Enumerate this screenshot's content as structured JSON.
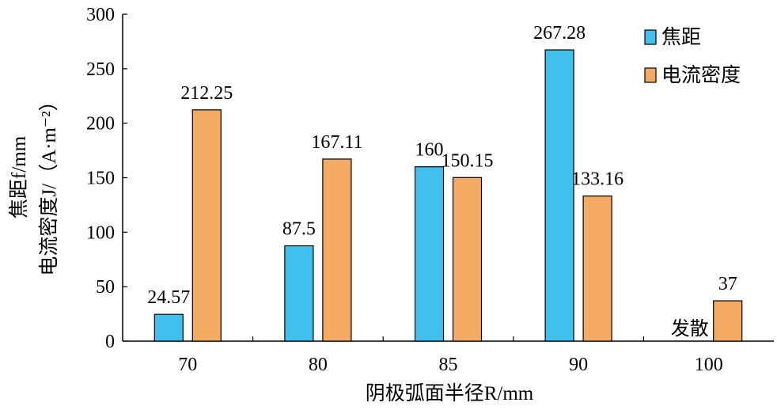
{
  "chart_data": {
    "type": "bar",
    "categories": [
      "70",
      "80",
      "85",
      "90",
      "100"
    ],
    "series": [
      {
        "name": "焦距",
        "color": "#41bfed",
        "values": [
          24.57,
          87.5,
          160,
          267.28,
          null
        ],
        "labels": [
          "24.57",
          "87.5",
          "160",
          "267.28",
          "发散"
        ]
      },
      {
        "name": "电流密度",
        "color": "#f4aa63",
        "values": [
          212.25,
          167.11,
          150.15,
          133.16,
          37
        ],
        "labels": [
          "212.25",
          "167.11",
          "150.15",
          "133.16",
          "37"
        ]
      }
    ],
    "xlabel": "阴极弧面半径R/mm",
    "ylabel_line1": "焦距f/mm",
    "ylabel_line2": "电流密度J/（A·m⁻²）",
    "yticks": [
      0,
      50,
      100,
      150,
      200,
      250,
      300
    ],
    "ylim": [
      0,
      300
    ],
    "grid": false,
    "legend_position": "top-right"
  }
}
